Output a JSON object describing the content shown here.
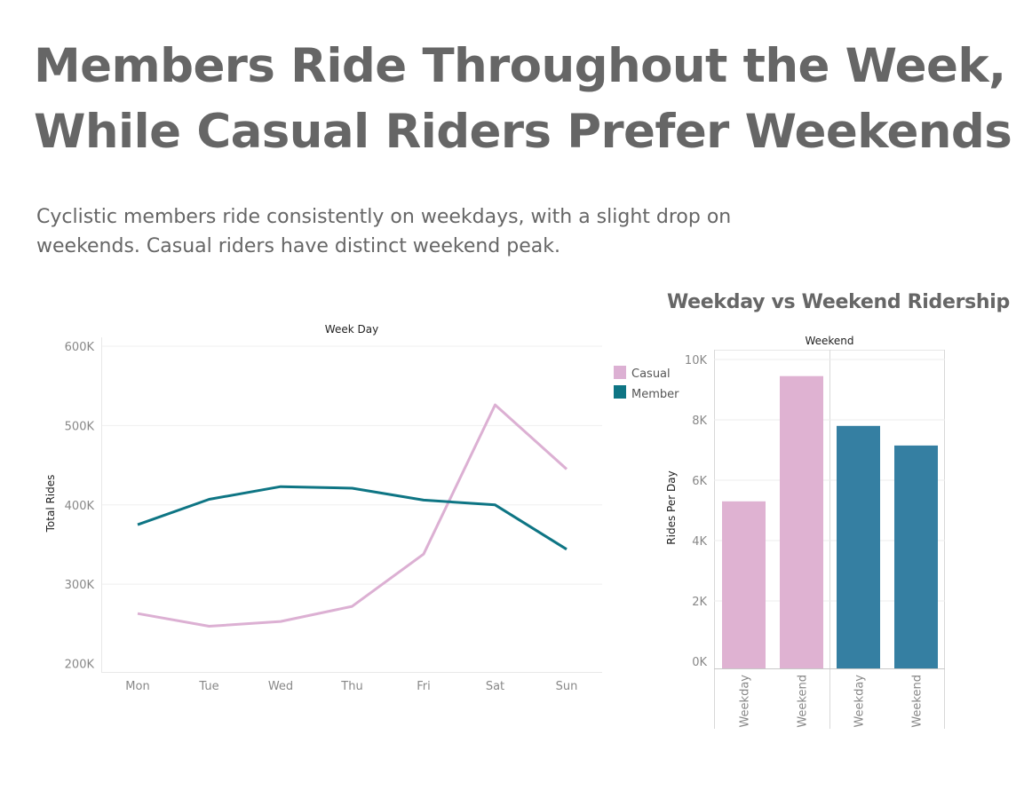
{
  "header": {
    "title_line1": "Members Ride Throughout the Week,",
    "title_line2": "While Casual Riders Prefer Weekends",
    "subtitle_line1": "Cyclistic members ride consistently on weekdays, with a slight drop on",
    "subtitle_line2": "weekends. Casual riders have distinct weekend peak."
  },
  "colors": {
    "casual_line": "#dcb0d3",
    "member_line": "#0e7584",
    "casual_bar": "#dfb2d2",
    "member_bar": "#357fa2"
  },
  "chart_data": [
    {
      "type": "line",
      "title": "",
      "column_header": "Week Day",
      "xlabel": "",
      "ylabel": "Total Rides",
      "categories": [
        "Mon",
        "Tue",
        "Wed",
        "Thu",
        "Fri",
        "Sat",
        "Sun"
      ],
      "ylim": [
        200000,
        600000
      ],
      "yticks": [
        200000,
        300000,
        400000,
        500000,
        600000
      ],
      "ytick_labels": [
        "200K",
        "300K",
        "400K",
        "500K",
        "600K"
      ],
      "grid": true,
      "legend": "right",
      "series": [
        {
          "name": "Casual",
          "values": [
            263000,
            247000,
            253000,
            272000,
            338000,
            526000,
            445000
          ]
        },
        {
          "name": "Member",
          "values": [
            375000,
            407000,
            423000,
            421000,
            406000,
            400000,
            344000
          ]
        }
      ]
    },
    {
      "type": "bar",
      "title": "Weekday vs Weekend Ridership",
      "column_header": "Weekend",
      "xlabel": "",
      "ylabel": "Rides Per Day",
      "categories": [
        "Weekday",
        "Weekend",
        "Weekday",
        "Weekend"
      ],
      "groups": [
        "Casual",
        "Casual",
        "Member",
        "Member"
      ],
      "values": [
        5300,
        9450,
        7800,
        7150
      ],
      "ylim": [
        0,
        10000
      ],
      "yticks": [
        0,
        2000,
        4000,
        6000,
        8000,
        10000
      ],
      "ytick_labels": [
        "0K",
        "2K",
        "4K",
        "6K",
        "8K",
        "10K"
      ],
      "grid": true
    }
  ]
}
